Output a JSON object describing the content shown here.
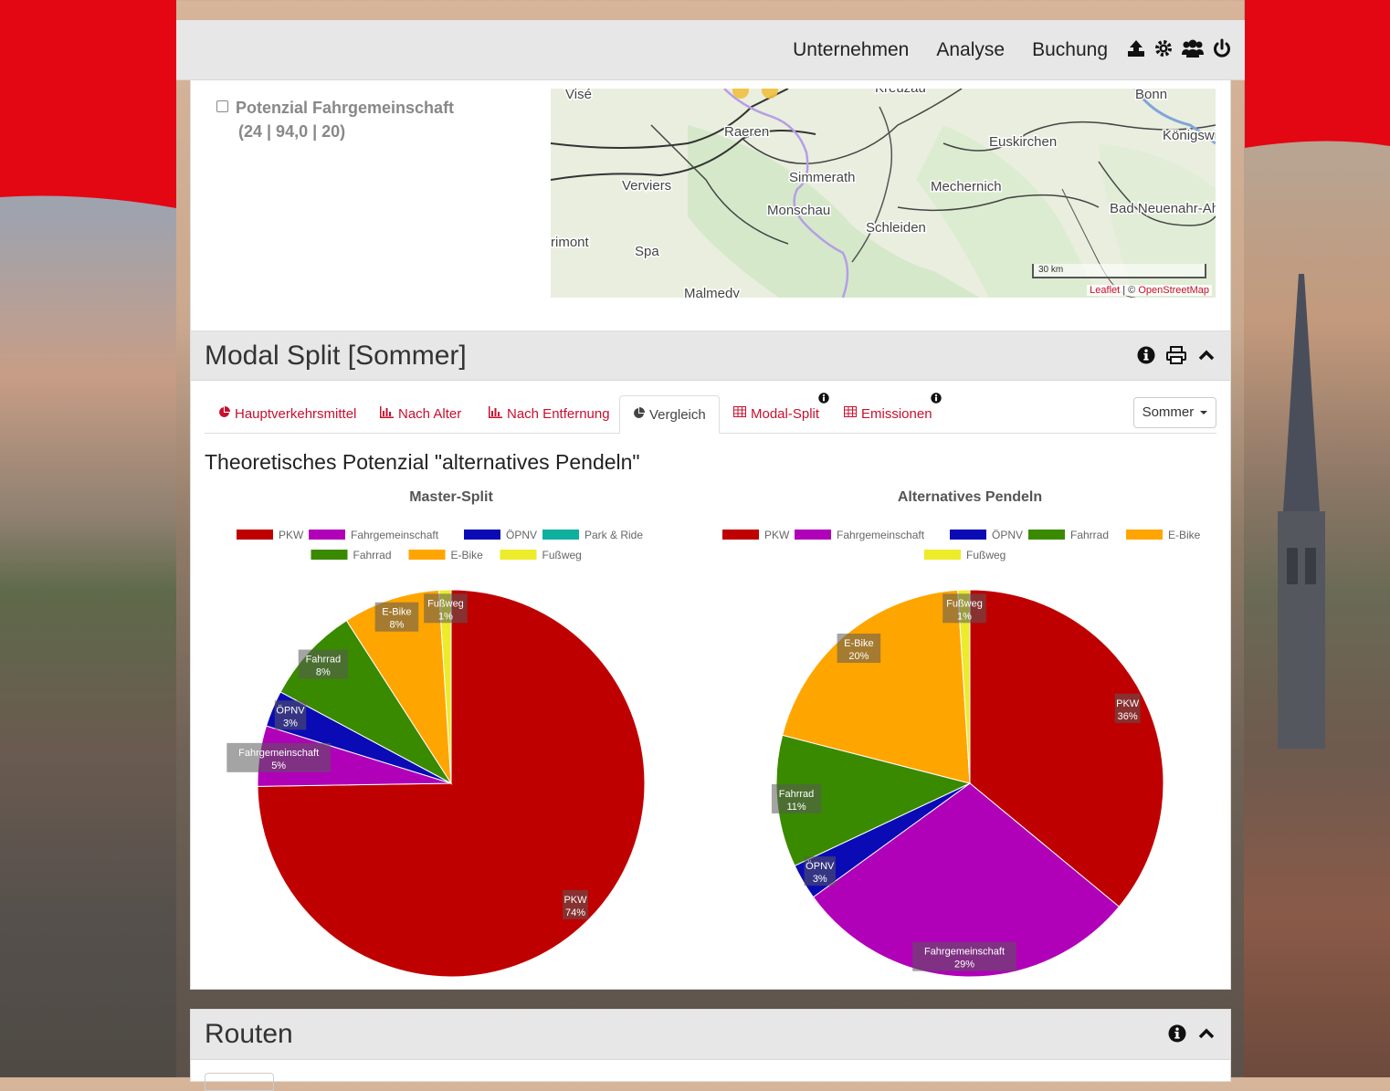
{
  "navbar": {
    "links": [
      "Unternehmen",
      "Analyse",
      "Buchung"
    ],
    "icons": [
      "upload-icon",
      "gear-icon",
      "users-icon",
      "power-icon"
    ]
  },
  "map_panel": {
    "checkbox_label": "Potenzial Fahrgemeinschaft",
    "checkbox_sub": "(24 | 94,0 | 20)",
    "places": [
      "Visé",
      "Raeren",
      "Kreuzau",
      "Bonn",
      "Euskirchen",
      "Königswinter",
      "Verviers",
      "Simmerath",
      "Mechernich",
      "Monschau",
      "Schleiden",
      "Bad Neuenahr-Ahrweiler",
      "rimont",
      "Spa",
      "Malmedy"
    ],
    "scale_label": "30 km",
    "attribution_leaflet": "Leaflet",
    "attribution_sep": " | © ",
    "attribution_osm": "OpenStreetMap"
  },
  "modal_split": {
    "title": "Modal Split [Sommer]",
    "tabs": [
      {
        "label": "Hauptverkehrsmittel",
        "icon": "pie-icon"
      },
      {
        "label": "Nach Alter",
        "icon": "bar-chart-icon"
      },
      {
        "label": "Nach Entfernung",
        "icon": "bar-chart-icon"
      },
      {
        "label": "Vergleich",
        "icon": "pie-icon"
      },
      {
        "label": "Modal-Split",
        "icon": "table-icon"
      },
      {
        "label": "Emissionen",
        "icon": "table-icon"
      }
    ],
    "season_dropdown": "Sommer",
    "chart_heading": "Theoretisches Potenzial \"alternatives Pendeln\""
  },
  "routen": {
    "title": "Routen"
  },
  "colors": {
    "PKW": "#bf0000",
    "Fahrgemeinschaft": "#b000b8",
    "ÖPNV": "#0b0bb5",
    "Park & Ride": "#10b09e",
    "Fahrrad": "#3a8a00",
    "E-Bike": "#ffa500",
    "Fußweg": "#ecec2a",
    "brand_red": "#e30613"
  },
  "chart_data": [
    {
      "type": "pie",
      "title": "Master-Split",
      "legend": [
        "PKW",
        "Fahrgemeinschaft",
        "ÖPNV",
        "Park & Ride",
        "Fahrrad",
        "E-Bike",
        "Fußweg"
      ],
      "legend_position": "top",
      "categories": [
        "PKW",
        "Fahrgemeinschaft",
        "ÖPNV",
        "Park & Ride",
        "Fahrrad",
        "E-Bike",
        "Fußweg"
      ],
      "values": [
        74,
        5,
        3,
        0,
        8,
        8,
        1
      ],
      "labels": [
        "74%",
        "5%",
        "3%",
        "",
        "8%",
        "8%",
        "1%"
      ]
    },
    {
      "type": "pie",
      "title": "Alternatives Pendeln",
      "legend": [
        "PKW",
        "Fahrgemeinschaft",
        "ÖPNV",
        "Fahrrad",
        "E-Bike",
        "Fußweg"
      ],
      "legend_position": "top",
      "categories": [
        "PKW",
        "Fahrgemeinschaft",
        "ÖPNV",
        "Fahrrad",
        "E-Bike",
        "Fußweg"
      ],
      "values": [
        36,
        29,
        3,
        11,
        20,
        1
      ],
      "labels": [
        "36%",
        "29%",
        "3%",
        "11%",
        "20%",
        "1%"
      ]
    }
  ]
}
